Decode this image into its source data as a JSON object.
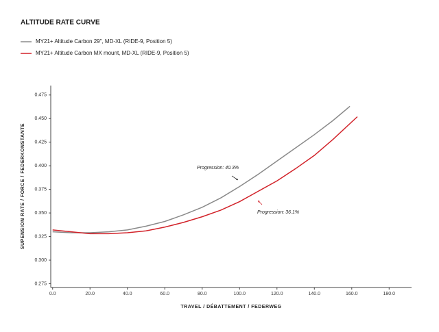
{
  "chart_data": {
    "type": "line",
    "title": "ALTITUDE RATE CURVE",
    "x_label": "TRAVEL   /   DÉBATTEMENT   /   FEDERWEG",
    "y_label": "SUPENSION RATE   /   FORCE   /   FEDERKONSTANTE",
    "xlim": [
      -1,
      192
    ],
    "ylim": [
      0.271,
      0.485
    ],
    "xticks": [
      {
        "value": 0,
        "label": "0.0"
      },
      {
        "value": 20,
        "label": "20.0"
      },
      {
        "value": 40,
        "label": "40.0"
      },
      {
        "value": 60,
        "label": "60.0"
      },
      {
        "value": 80,
        "label": "80.0"
      },
      {
        "value": 100,
        "label": "100.0"
      },
      {
        "value": 120,
        "label": "120.0"
      },
      {
        "value": 140,
        "label": "140.0"
      },
      {
        "value": 160,
        "label": "160.0"
      },
      {
        "value": 180,
        "label": "180.0"
      }
    ],
    "yticks": [
      0.275,
      {
        "value": 0.3,
        "label": "0.300"
      },
      0.325,
      {
        "value": 0.35,
        "label": "0.350"
      },
      0.375,
      {
        "value": 0.4,
        "label": "0.400"
      },
      0.425,
      {
        "value": 0.45,
        "label": "0.450"
      },
      0.475
    ],
    "grid": false,
    "series": [
      {
        "name": "MY21+ Altitude Carbon 29\", MD-XL (RIDE-9, Position 5)",
        "color": "#8a8a8a",
        "x": [
          0,
          10,
          20,
          30,
          40,
          50,
          60,
          70,
          80,
          90,
          100,
          110,
          120,
          130,
          140,
          150,
          159
        ],
        "values": [
          0.33,
          0.329,
          0.329,
          0.33,
          0.332,
          0.336,
          0.341,
          0.348,
          0.356,
          0.366,
          0.378,
          0.391,
          0.405,
          0.419,
          0.433,
          0.448,
          0.463
        ]
      },
      {
        "name": "MY21+ Altitude Carbon MX mount, MD-XL (RIDE-9, Position 5)",
        "color": "#d2232a",
        "x": [
          0,
          10,
          20,
          30,
          40,
          50,
          60,
          70,
          80,
          90,
          100,
          110,
          120,
          130,
          140,
          150,
          163
        ],
        "values": [
          0.332,
          0.33,
          0.328,
          0.328,
          0.329,
          0.331,
          0.335,
          0.34,
          0.346,
          0.353,
          0.362,
          0.373,
          0.384,
          0.397,
          0.411,
          0.428,
          0.452
        ]
      }
    ],
    "annotations": [
      {
        "text": "Progression: 40.3%",
        "color": "#333333"
      },
      {
        "text": "Progression: 36.1%",
        "color": "#d2232a"
      }
    ]
  }
}
